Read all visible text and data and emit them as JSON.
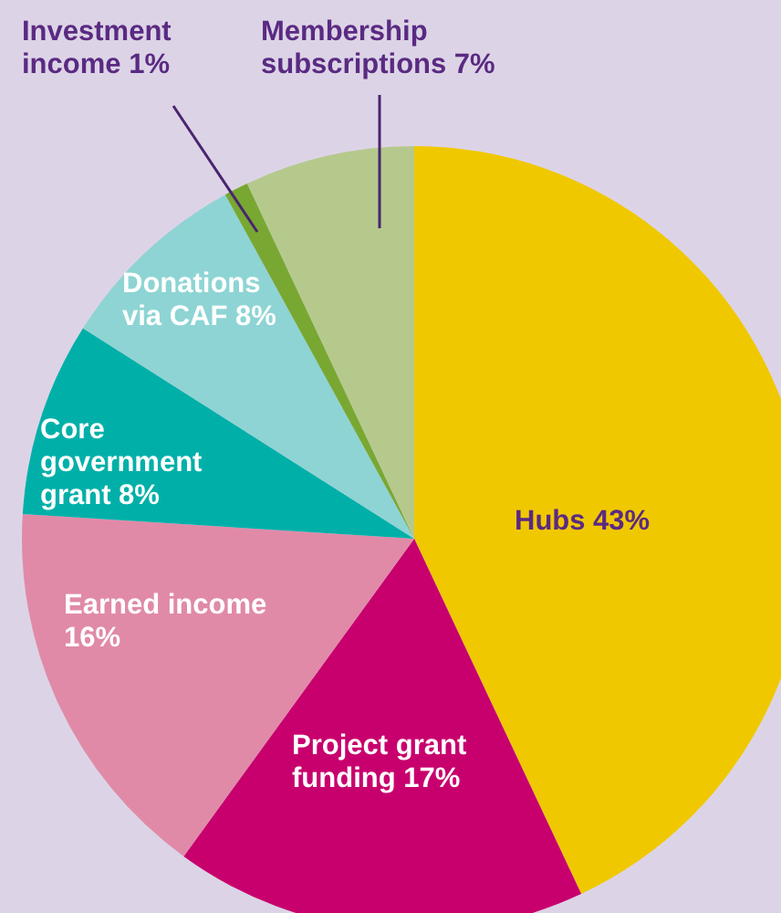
{
  "chart_data": {
    "type": "pie",
    "categories": [
      "Hubs",
      "Project grant funding",
      "Earned income",
      "Core government grant",
      "Donations via CAF",
      "Investment income",
      "Membership subscriptions"
    ],
    "values": [
      43,
      17,
      16,
      8,
      8,
      1,
      7
    ],
    "value_labels": [
      "43%",
      "17%",
      "16%",
      "8%",
      "8%",
      "1%",
      "7%"
    ],
    "colors": [
      "#f0c800",
      "#c8006e",
      "#e08aa8",
      "#00b0a8",
      "#8ed4d4",
      "#78a832",
      "#b5c98c"
    ]
  }
}
